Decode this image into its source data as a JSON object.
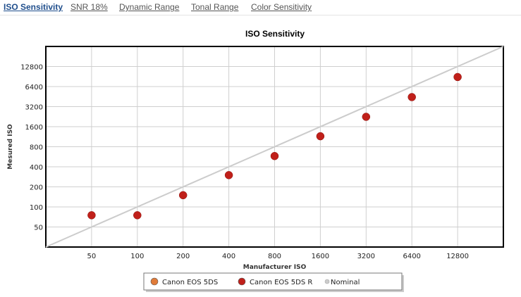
{
  "tabs": [
    {
      "label": "ISO Sensitivity",
      "active": true
    },
    {
      "label": "SNR 18%",
      "active": false
    },
    {
      "label": "Dynamic Range",
      "active": false
    },
    {
      "label": "Tonal Range",
      "active": false
    },
    {
      "label": "Color Sensitivity",
      "active": false
    }
  ],
  "chart_data": {
    "type": "scatter",
    "title": "ISO Sensitivity",
    "xlabel": "Manufacturer ISO",
    "ylabel": "Mesured ISO",
    "x_scale": "log2",
    "y_scale": "log2",
    "xlim": [
      25,
      25600
    ],
    "ylim": [
      25,
      25600
    ],
    "x_ticks": [
      50,
      100,
      200,
      400,
      800,
      1600,
      3200,
      6400,
      12800
    ],
    "y_ticks": [
      50,
      100,
      200,
      400,
      800,
      1600,
      3200,
      6400,
      12800
    ],
    "grid": true,
    "legend_position": "bottom",
    "series": [
      {
        "name": "Canon EOS 5DS",
        "color": "#e07b39",
        "marker": "circle",
        "x": [],
        "y": []
      },
      {
        "name": "Canon EOS 5DS R",
        "color": "#c0201a",
        "marker": "circle",
        "x": [
          50,
          100,
          200,
          400,
          800,
          1600,
          3200,
          6400,
          12800
        ],
        "y": [
          75,
          75,
          150,
          300,
          580,
          1150,
          2250,
          4450,
          8900
        ]
      },
      {
        "name": "Nominal",
        "color": "#cccccc",
        "marker": "line",
        "x": [
          25,
          25600
        ],
        "y": [
          25,
          25600
        ]
      }
    ]
  }
}
